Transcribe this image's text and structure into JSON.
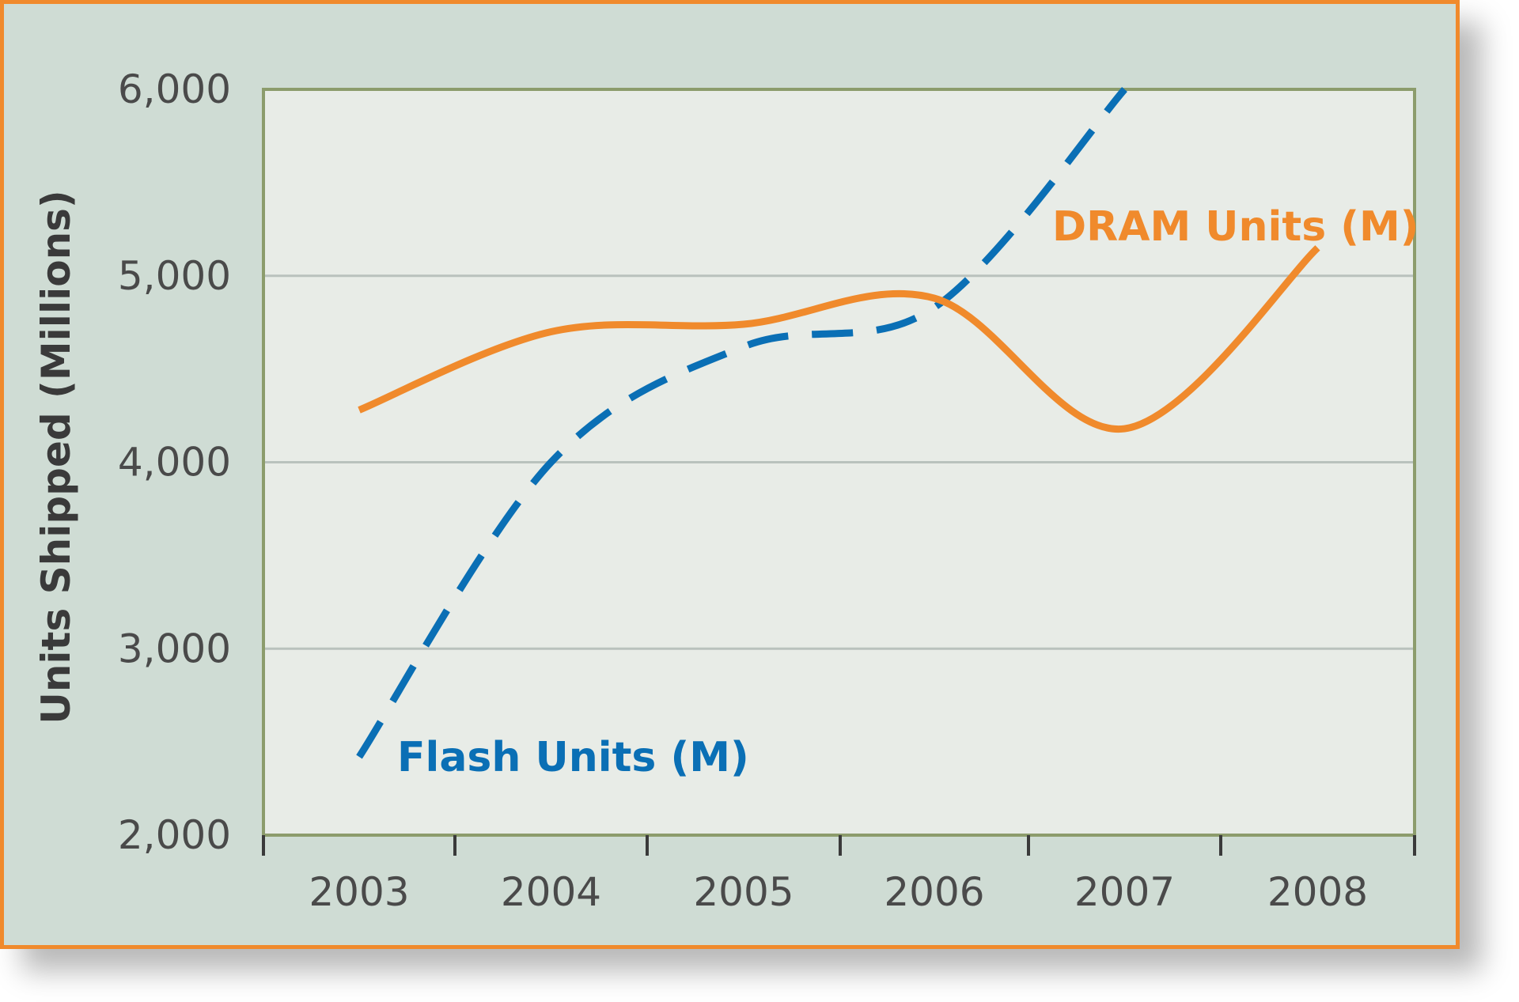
{
  "chart_data": {
    "type": "line",
    "title": "",
    "xlabel": "",
    "ylabel": "Units Shipped (Millions)",
    "ylim": [
      2000,
      6000
    ],
    "y_ticks": [
      {
        "value": 2000,
        "label": "2,000"
      },
      {
        "value": 3000,
        "label": "3,000"
      },
      {
        "value": 4000,
        "label": "4,000"
      },
      {
        "value": 5000,
        "label": "5,000"
      },
      {
        "value": 6000,
        "label": "6,000"
      }
    ],
    "categories": [
      "2003",
      "2004",
      "2005",
      "2006",
      "2007",
      "2008"
    ],
    "grid": "horizontal",
    "series": [
      {
        "name": "DRAM Units (M)",
        "color": "#f08a2c",
        "style": "solid",
        "x": [
          "2003",
          "2004",
          "2005",
          "2006",
          "2007",
          "2008"
        ],
        "values": [
          4280,
          4700,
          4740,
          4880,
          4180,
          5150
        ]
      },
      {
        "name": "Flash Units (M)",
        "color": "#0a6fb5",
        "style": "dashed",
        "x": [
          "2003",
          "2004",
          "2005",
          "2006",
          "2007"
        ],
        "values": [
          2420,
          4000,
          4620,
          4830,
          6000
        ]
      }
    ]
  }
}
